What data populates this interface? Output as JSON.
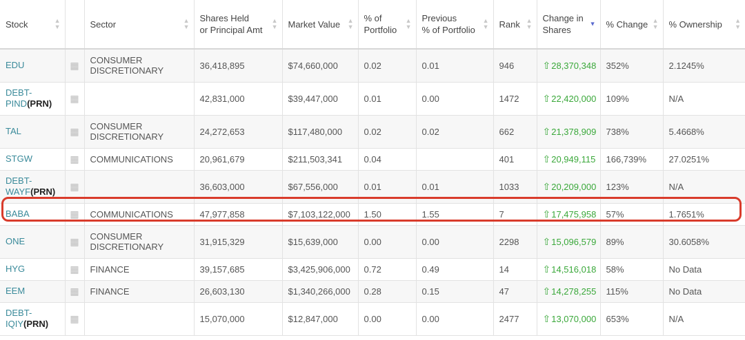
{
  "headers": [
    "Stock",
    "",
    "Sector",
    "Shares Held\nor Principal Amt",
    "Market Value",
    "% of\nPortfolio",
    "Previous\n% of Portfolio",
    "Rank",
    "Change in\nShares",
    "% Change",
    "% Ownership"
  ],
  "rows": [
    {
      "stock": "EDU",
      "suffix": "",
      "sector": "CONSUMER\nDISCRETIONARY",
      "shares": "36,418,895",
      "value": "$74,660,000",
      "pct": "0.02",
      "prev": "0.01",
      "rank": "946",
      "change": "28,370,348",
      "pct_change": "352%",
      "own": "2.1245%"
    },
    {
      "stock": "DEBT-\nPIND",
      "suffix": "(PRN)",
      "sector": "",
      "shares": "42,831,000",
      "value": "$39,447,000",
      "pct": "0.01",
      "prev": "0.00",
      "rank": "1472",
      "change": "22,420,000",
      "pct_change": "109%",
      "own": "N/A"
    },
    {
      "stock": "TAL",
      "suffix": "",
      "sector": "CONSUMER\nDISCRETIONARY",
      "shares": "24,272,653",
      "value": "$117,480,000",
      "pct": "0.02",
      "prev": "0.02",
      "rank": "662",
      "change": "21,378,909",
      "pct_change": "738%",
      "own": "5.4668%"
    },
    {
      "stock": "STGW",
      "suffix": "",
      "sector": "COMMUNICATIONS",
      "shares": "20,961,679",
      "value": "$211,503,341",
      "pct": "0.04",
      "prev": "",
      "rank": "401",
      "change": "20,949,115",
      "pct_change": "166,739%",
      "own": "27.0251%"
    },
    {
      "stock": "DEBT-\nWAYF",
      "suffix": "(PRN)",
      "sector": "",
      "shares": "36,603,000",
      "value": "$67,556,000",
      "pct": "0.01",
      "prev": "0.01",
      "rank": "1033",
      "change": "20,209,000",
      "pct_change": "123%",
      "own": "N/A"
    },
    {
      "stock": "BABA",
      "suffix": "",
      "sector": "COMMUNICATIONS",
      "shares": "47,977,858",
      "value": "$7,103,122,000",
      "pct": "1.50",
      "prev": "1.55",
      "rank": "7",
      "change": "17,475,958",
      "pct_change": "57%",
      "own": "1.7651%"
    },
    {
      "stock": "ONE",
      "suffix": "",
      "sector": "CONSUMER\nDISCRETIONARY",
      "shares": "31,915,329",
      "value": "$15,639,000",
      "pct": "0.00",
      "prev": "0.00",
      "rank": "2298",
      "change": "15,096,579",
      "pct_change": "89%",
      "own": "30.6058%"
    },
    {
      "stock": "HYG",
      "suffix": "",
      "sector": "FINANCE",
      "shares": "39,157,685",
      "value": "$3,425,906,000",
      "pct": "0.72",
      "prev": "0.49",
      "rank": "14",
      "change": "14,516,018",
      "pct_change": "58%",
      "own": "No Data"
    },
    {
      "stock": "EEM",
      "suffix": "",
      "sector": "FINANCE",
      "shares": "26,603,130",
      "value": "$1,340,266,000",
      "pct": "0.28",
      "prev": "0.15",
      "rank": "47",
      "change": "14,278,255",
      "pct_change": "115%",
      "own": "No Data"
    },
    {
      "stock": "DEBT-\nIQIY",
      "suffix": "(PRN)",
      "sector": "",
      "shares": "15,070,000",
      "value": "$12,847,000",
      "pct": "0.00",
      "prev": "0.00",
      "rank": "2477",
      "change": "13,070,000",
      "pct_change": "653%",
      "own": "N/A"
    }
  ],
  "colors": {
    "stock_link": "#3a8a9a",
    "up_arrow": "#3aa83a",
    "highlight_border": "#d93b2b"
  },
  "icons": {
    "grid": "grid-icon",
    "up": "up-arrow-icon",
    "sort": "sort-icon"
  },
  "highlighted_row": "BABA"
}
